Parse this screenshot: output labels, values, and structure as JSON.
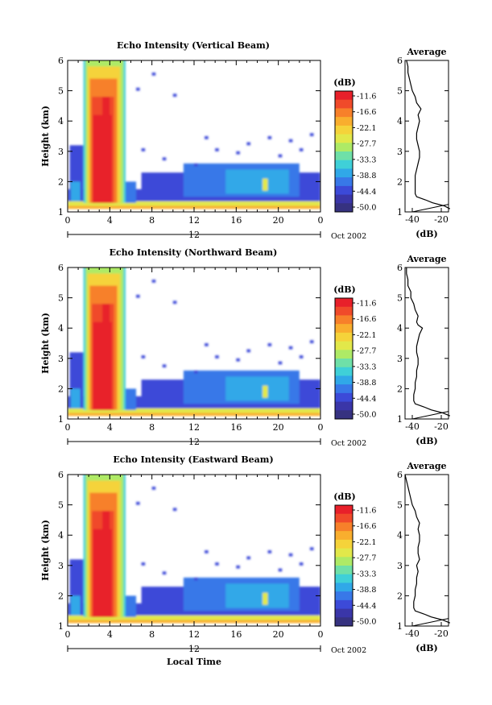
{
  "chart_data": [
    {
      "type": "heatmap",
      "title": "Echo Intensity (Vertical Beam)",
      "ylabel": "Height (km)",
      "x_ticks": [
        "0",
        "4",
        "8",
        "12",
        "16",
        "20",
        "0"
      ],
      "x_range_hours": [
        0,
        24
      ],
      "y_ticks": [
        "1",
        "2",
        "3",
        "4",
        "5",
        "6"
      ],
      "ylim": [
        1,
        6
      ],
      "date_day": "12",
      "date_month": "Oct 2002",
      "colorbar_unit": "(dB)",
      "colorbar_ticks": [
        "-11.6",
        "-16.6",
        "-22.1",
        "-27.7",
        "-33.3",
        "-38.8",
        "-44.4",
        "-50.0"
      ],
      "average_panel": {
        "title": "Average",
        "xlabel": "(dB)",
        "x_ticks": [
          "-40",
          "-20"
        ],
        "xlim": [
          -45,
          -15
        ],
        "y_ticks": [
          "1",
          "2",
          "3",
          "4",
          "5",
          "6"
        ]
      }
    },
    {
      "type": "heatmap",
      "title": "Echo Intensity (Northward Beam)",
      "ylabel": "Height (km)",
      "x_ticks": [
        "0",
        "4",
        "8",
        "12",
        "16",
        "20",
        "0"
      ],
      "x_range_hours": [
        0,
        24
      ],
      "y_ticks": [
        "1",
        "2",
        "3",
        "4",
        "5",
        "6"
      ],
      "ylim": [
        1,
        6
      ],
      "date_day": "12",
      "date_month": "Oct 2002",
      "colorbar_unit": "(dB)",
      "colorbar_ticks": [
        "-11.6",
        "-16.6",
        "-22.1",
        "-27.7",
        "-33.3",
        "-38.8",
        "-44.4",
        "-50.0"
      ],
      "average_panel": {
        "title": "Average",
        "xlabel": "(dB)",
        "x_ticks": [
          "-40",
          "-20"
        ],
        "xlim": [
          -45,
          -15
        ],
        "y_ticks": [
          "1",
          "2",
          "3",
          "4",
          "5",
          "6"
        ]
      }
    },
    {
      "type": "heatmap",
      "title": "Echo Intensity (Eastward Beam)",
      "ylabel": "Height (km)",
      "xlabel": "Local Time",
      "x_ticks": [
        "0",
        "4",
        "8",
        "12",
        "16",
        "20",
        "0"
      ],
      "x_range_hours": [
        0,
        24
      ],
      "y_ticks": [
        "1",
        "2",
        "3",
        "4",
        "5",
        "6"
      ],
      "ylim": [
        1,
        6
      ],
      "date_day": "12",
      "date_month": "Oct 2002",
      "colorbar_unit": "(dB)",
      "colorbar_ticks": [
        "-11.6",
        "-16.6",
        "-22.1",
        "-27.7",
        "-33.3",
        "-38.8",
        "-44.4",
        "-50.0"
      ],
      "average_panel": {
        "title": "Average",
        "xlabel": "(dB)",
        "x_ticks": [
          "-40",
          "-20"
        ],
        "xlim": [
          -45,
          -15
        ],
        "y_ticks": [
          "1",
          "2",
          "3",
          "4",
          "5",
          "6"
        ]
      }
    }
  ],
  "colorbar_colors": [
    "#e8202a",
    "#f04a2a",
    "#f7802a",
    "#f9ae2e",
    "#f5d33a",
    "#e2e84a",
    "#aeea66",
    "#6fe0a8",
    "#3fd0d8",
    "#30a8e8",
    "#3878e8",
    "#3c4ad8",
    "#3a36a8",
    "#363280"
  ],
  "average_profile": {
    "vertical": [
      [
        1.1,
        -14
      ],
      [
        1.2,
        -18
      ],
      [
        1.3,
        -26
      ],
      [
        1.4,
        -31
      ],
      [
        1.5,
        -37
      ],
      [
        1.6,
        -38
      ],
      [
        1.8,
        -38
      ],
      [
        2.0,
        -38
      ],
      [
        2.2,
        -38
      ],
      [
        2.4,
        -37
      ],
      [
        2.6,
        -36
      ],
      [
        2.8,
        -35
      ],
      [
        3.0,
        -35
      ],
      [
        3.2,
        -36
      ],
      [
        3.4,
        -37
      ],
      [
        3.6,
        -37
      ],
      [
        3.8,
        -36
      ],
      [
        4.0,
        -35
      ],
      [
        4.2,
        -36
      ],
      [
        4.4,
        -34
      ],
      [
        4.6,
        -37
      ],
      [
        4.8,
        -38
      ],
      [
        5.0,
        -40
      ],
      [
        5.2,
        -41
      ],
      [
        5.4,
        -42
      ],
      [
        5.6,
        -43
      ],
      [
        5.8,
        -43
      ],
      [
        6.0,
        -44
      ]
    ],
    "northward": [
      [
        1.1,
        -14
      ],
      [
        1.2,
        -19
      ],
      [
        1.3,
        -27
      ],
      [
        1.4,
        -32
      ],
      [
        1.5,
        -38
      ],
      [
        1.6,
        -39
      ],
      [
        1.8,
        -39
      ],
      [
        2.0,
        -38
      ],
      [
        2.2,
        -38
      ],
      [
        2.4,
        -37
      ],
      [
        2.6,
        -37
      ],
      [
        2.8,
        -36
      ],
      [
        3.0,
        -36
      ],
      [
        3.2,
        -37
      ],
      [
        3.4,
        -37
      ],
      [
        3.6,
        -36
      ],
      [
        3.8,
        -35
      ],
      [
        4.0,
        -33
      ],
      [
        4.1,
        -36
      ],
      [
        4.2,
        -37
      ],
      [
        4.4,
        -36
      ],
      [
        4.6,
        -38
      ],
      [
        4.8,
        -39
      ],
      [
        5.0,
        -41
      ],
      [
        5.2,
        -41
      ],
      [
        5.4,
        -43
      ],
      [
        5.6,
        -43
      ],
      [
        5.8,
        -44
      ],
      [
        6.0,
        -44
      ]
    ],
    "eastward": [
      [
        1.1,
        -14
      ],
      [
        1.2,
        -19
      ],
      [
        1.3,
        -27
      ],
      [
        1.4,
        -32
      ],
      [
        1.5,
        -38
      ],
      [
        1.6,
        -39
      ],
      [
        1.8,
        -39
      ],
      [
        2.0,
        -38
      ],
      [
        2.2,
        -38
      ],
      [
        2.4,
        -37
      ],
      [
        2.6,
        -37
      ],
      [
        2.8,
        -36
      ],
      [
        3.0,
        -37
      ],
      [
        3.2,
        -35
      ],
      [
        3.4,
        -36
      ],
      [
        3.6,
        -36
      ],
      [
        3.8,
        -35
      ],
      [
        4.0,
        -35
      ],
      [
        4.2,
        -36
      ],
      [
        4.4,
        -35
      ],
      [
        4.6,
        -37
      ],
      [
        4.8,
        -38
      ],
      [
        5.0,
        -40
      ],
      [
        5.2,
        -41
      ],
      [
        5.4,
        -42
      ],
      [
        5.6,
        -43
      ],
      [
        5.8,
        -44
      ],
      [
        6.0,
        -45
      ]
    ]
  }
}
